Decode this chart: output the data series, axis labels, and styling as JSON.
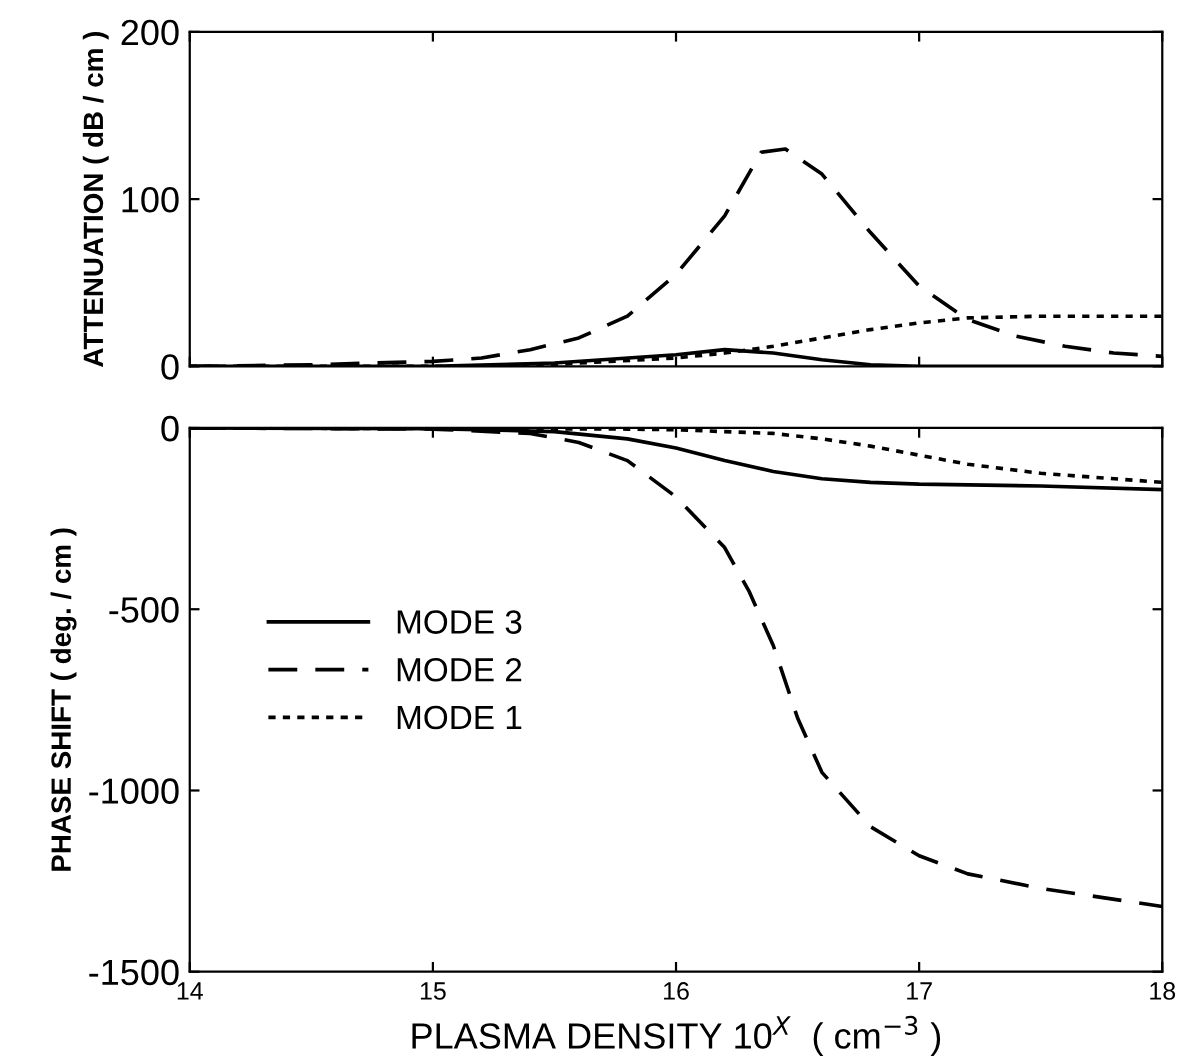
{
  "chart_data": [
    {
      "type": "line",
      "ylabel": "ATTENUATION ( dB / cm )",
      "xlim": [
        14,
        18
      ],
      "xticks": [
        14,
        15,
        16,
        17,
        18
      ],
      "ylim": [
        0,
        200
      ],
      "yticks": [
        0,
        100,
        200
      ],
      "tick_labels": "y",
      "grid": false,
      "legend": false,
      "series": [
        {
          "color": "#000000",
          "line_style": "solid",
          "x": [
            14,
            15,
            15.5,
            16,
            16.2,
            16.4,
            16.6,
            16.8,
            17,
            18
          ],
          "values": [
            0,
            0,
            2,
            7,
            10,
            8,
            4,
            1,
            0,
            0
          ]
        },
        {
          "color": "#000000",
          "line_style": "dashed",
          "x": [
            14,
            14.5,
            15,
            15.2,
            15.4,
            15.6,
            15.8,
            16.0,
            16.2,
            16.35,
            16.45,
            16.6,
            16.8,
            17.0,
            17.2,
            17.4,
            17.6,
            17.8,
            18
          ],
          "values": [
            0,
            1,
            3,
            5,
            10,
            17,
            30,
            55,
            90,
            128,
            130,
            115,
            80,
            48,
            28,
            18,
            12,
            8,
            6
          ]
        },
        {
          "color": "#000000",
          "line_style": "dotted",
          "x": [
            14,
            15,
            15.4,
            15.6,
            16,
            16.2,
            16.4,
            16.6,
            16.8,
            17,
            17.2,
            17.5,
            18
          ],
          "values": [
            0,
            0,
            0,
            2,
            5,
            8,
            12,
            17,
            22,
            26,
            29,
            30,
            30
          ]
        }
      ]
    },
    {
      "type": "line",
      "xlabel": "PLASMA DENSITY 10$^{X}$  ( cm$^{−3}$ )",
      "ylabel": "PHASE SHIFT ( deg. / cm )",
      "xlim": [
        14,
        18
      ],
      "xticks": [
        14,
        15,
        16,
        17,
        18
      ],
      "ylim": [
        -1500,
        0
      ],
      "yticks": [
        -1500,
        -1000,
        -500,
        0
      ],
      "grid": false,
      "legend": "center left",
      "series": [
        {
          "name": "MODE 3",
          "color": "#000000",
          "line_style": "solid",
          "x": [
            14,
            15,
            15.5,
            15.8,
            16,
            16.2,
            16.4,
            16.6,
            16.8,
            17,
            17.5,
            18
          ],
          "values": [
            0,
            -2,
            -10,
            -30,
            -55,
            -90,
            -120,
            -140,
            -150,
            -155,
            -160,
            -170
          ]
        },
        {
          "name": "MODE 2",
          "color": "#000000",
          "line_style": "dashed",
          "x": [
            14,
            15,
            15.4,
            15.6,
            15.8,
            16.0,
            16.2,
            16.3,
            16.4,
            16.5,
            16.6,
            16.8,
            17,
            17.2,
            17.5,
            18
          ],
          "values": [
            0,
            -3,
            -15,
            -40,
            -90,
            -190,
            -330,
            -450,
            -600,
            -800,
            -950,
            -1100,
            -1180,
            -1230,
            -1270,
            -1320
          ]
        },
        {
          "name": "MODE 1",
          "color": "#000000",
          "line_style": "dotted",
          "x": [
            14,
            15.8,
            16,
            16.4,
            16.6,
            16.8,
            17,
            17.2,
            17.5,
            18
          ],
          "values": [
            0,
            -3,
            -5,
            -15,
            -30,
            -50,
            -75,
            -100,
            -125,
            -150
          ]
        }
      ]
    }
  ]
}
